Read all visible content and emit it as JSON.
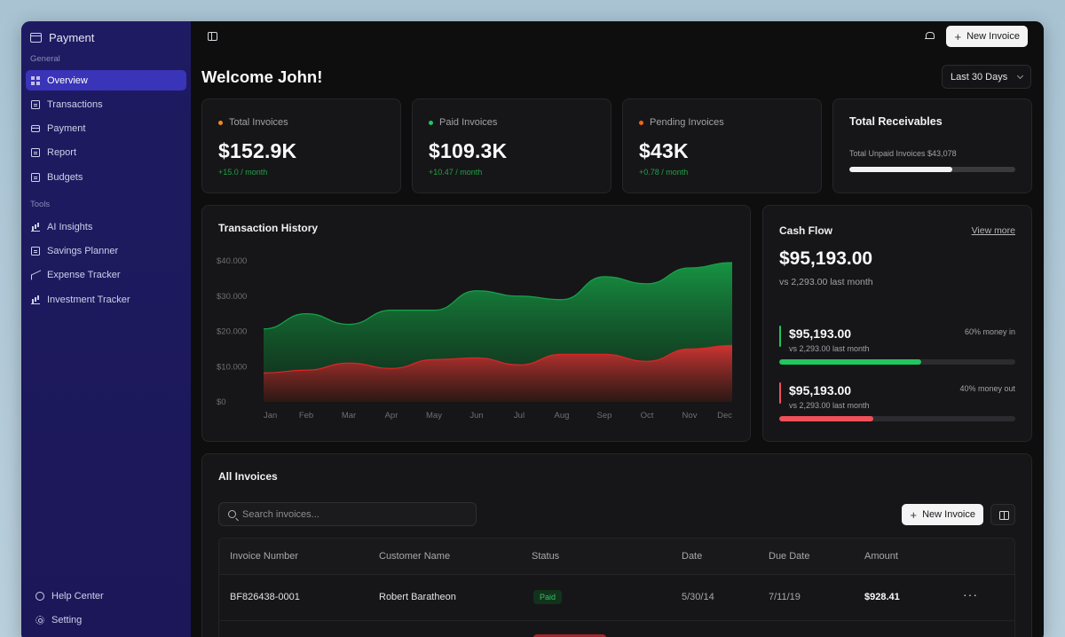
{
  "sidebar": {
    "brand": "Payment",
    "general_label": "General",
    "general_items": [
      {
        "label": "Overview",
        "icon": "grid-icon",
        "active": true
      },
      {
        "label": "Transactions",
        "icon": "document-icon"
      },
      {
        "label": "Payment",
        "icon": "card-icon"
      },
      {
        "label": "Report",
        "icon": "report-icon"
      },
      {
        "label": "Budgets",
        "icon": "budget-icon"
      }
    ],
    "tools_label": "Tools",
    "tools_items": [
      {
        "label": "AI Insights",
        "icon": "insights-icon"
      },
      {
        "label": "Savings Planner",
        "icon": "savings-icon"
      },
      {
        "label": "Expense Tracker",
        "icon": "trend-icon"
      },
      {
        "label": "Investment Tracker",
        "icon": "investment-icon"
      }
    ],
    "bottom_items": [
      {
        "label": "Help Center",
        "icon": "help-icon"
      },
      {
        "label": "Setting",
        "icon": "gear-icon"
      }
    ]
  },
  "topbar": {
    "new_invoice_label": "New Invoice"
  },
  "header": {
    "welcome": "Welcome John!",
    "range": "Last 30 Days"
  },
  "stats": [
    {
      "label": "Total Invoices",
      "value": "$152.9K",
      "change": "+15.0 / month",
      "dot_color": "#f08a1c"
    },
    {
      "label": "Paid Invoices",
      "value": "$109.3K",
      "change": "+10.47 / month",
      "dot_color": "#22c55e"
    },
    {
      "label": "Pending Invoices",
      "value": "$43K",
      "change": "+0.78 / month",
      "dot_color": "#f0641c"
    }
  ],
  "receivables": {
    "title": "Total Receivables",
    "subtitle": "Total Unpaid Invoices $43,078",
    "progress": 0.62
  },
  "transaction_history": {
    "title": "Transaction History"
  },
  "chart_data": {
    "type": "area",
    "title": "Transaction History",
    "categories": [
      "Jan",
      "Feb",
      "Mar",
      "Apr",
      "May",
      "Jun",
      "Jul",
      "Aug",
      "Sep",
      "Oct",
      "Nov",
      "Dec"
    ],
    "y_ticks": [
      "$40.000",
      "$30.000",
      "$20.000",
      "$10.000",
      "$0"
    ],
    "ylim": [
      0,
      40000
    ],
    "grid": false,
    "series": [
      {
        "color": "#16a34a",
        "values": [
          20700,
          25000,
          22000,
          26000,
          26000,
          31500,
          30000,
          29000,
          35500,
          33500,
          38000,
          39500
        ]
      },
      {
        "color": "#dc2626",
        "values": [
          8200,
          9000,
          11000,
          9500,
          12000,
          12500,
          10500,
          13500,
          13500,
          11500,
          15000,
          16000
        ]
      }
    ]
  },
  "cash_flow": {
    "title": "Cash Flow",
    "link": "View more",
    "value": "$95,193.00",
    "subtitle": "vs 2,293.00 last month",
    "rows": [
      {
        "value": "$95,193.00",
        "sub": "vs 2,293.00 last month",
        "pct_label": "60% money in",
        "progress": 0.6,
        "color": "#22c55e"
      },
      {
        "value": "$95,193.00",
        "sub": "vs 2,293.00 last month",
        "pct_label": "40% money out",
        "progress": 0.4,
        "color": "#f0505a"
      }
    ]
  },
  "invoices": {
    "title": "All Invoices",
    "search_placeholder": "Search invoices...",
    "new_invoice_label": "New Invoice",
    "columns": [
      "Invoice Number",
      "Customer Name",
      "Status",
      "Date",
      "Due Date",
      "Amount"
    ],
    "rows": [
      {
        "number": "BF826438-0001",
        "customer": "Robert Baratheon",
        "status": "Paid",
        "date": "5/30/14",
        "due": "7/11/19",
        "amount": "$928.41",
        "actions": "···"
      }
    ]
  }
}
